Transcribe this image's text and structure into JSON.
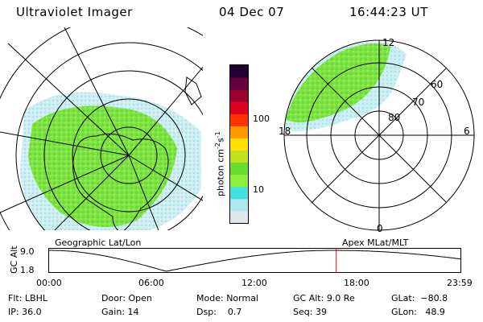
{
  "header": {
    "instrument": "Ultraviolet Imager",
    "date": "04 Dec 07",
    "time": "16:44:23 UT"
  },
  "colorbar": {
    "unit_text": "photon cm",
    "unit_exp1": "-2",
    "unit_s": "s",
    "unit_exp2": "-1",
    "tick_100": "100",
    "tick_10": "10",
    "colors": [
      "#e0e6ea",
      "#b0e8ee",
      "#40e0e0",
      "#90ee40",
      "#66dd33",
      "#c0e020",
      "#ffe000",
      "#ff9900",
      "#ff3300",
      "#dd0020",
      "#990030",
      "#660040",
      "#220033"
    ]
  },
  "left_map": {
    "projection_label": "Geographic Lat/Lon"
  },
  "right_map": {
    "projection_label": "Apex MLat/MLT",
    "mlt_12": "12",
    "mlt_18": "18",
    "mlt_6": "6",
    "mlt_0": "0",
    "lat_60": "60",
    "lat_70": "70",
    "lat_80": "80"
  },
  "altitude_plot": {
    "ylabel": "GC Alt",
    "y_top": "9.0",
    "y_bottom": "1.8",
    "x_ticks": [
      "00:00",
      "06:00",
      "12:00",
      "18:00",
      "23:59"
    ],
    "current_time_fraction": 0.6976
  },
  "status": {
    "flt_label": "Flt:",
    "flt_value": "LBHL",
    "ip_label": "IP:",
    "ip_value": "36.0",
    "door_label": "Door:",
    "door_value": "Open",
    "gain_label": "Gain:",
    "gain_value": "14",
    "mode_label": "Mode:",
    "mode_value": "Normal",
    "dsp_label": "Dsp:",
    "dsp_value": "0.7",
    "gcalt_label": "GC Alt:",
    "gcalt_value": "9.0 Re",
    "seq_label": "Seq:",
    "seq_value": "39",
    "glat_label": "GLat:",
    "glat_value": "−80.8",
    "glon_label": "GLon:",
    "glon_value": "48.9"
  }
}
